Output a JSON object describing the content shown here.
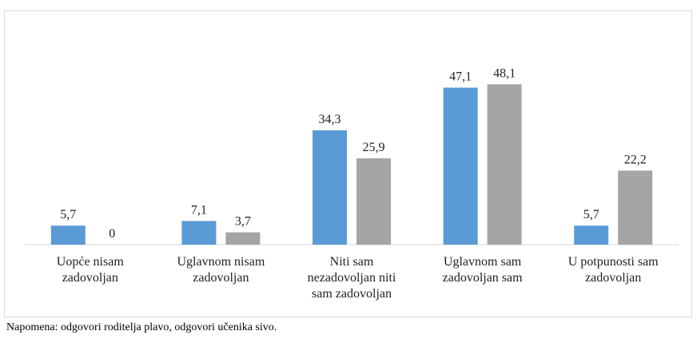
{
  "chart_data": {
    "type": "bar",
    "categories": [
      "Uopće nisam zadovoljan",
      "Uglavnom nisam zadovoljan",
      "Niti sam nezadovoljan niti sam zadovoljan",
      "Uglavnom sam zadovoljan sam",
      "U potpunosti sam zadovoljan"
    ],
    "category_lines": [
      [
        "Uopće nisam",
        "zadovoljan"
      ],
      [
        "Uglavnom nisam",
        "zadovoljan"
      ],
      [
        "Niti sam",
        "nezadovoljan niti",
        "sam zadovoljan"
      ],
      [
        "Uglavnom sam",
        "zadovoljan sam"
      ],
      [
        "U potpunosti sam",
        "zadovoljan"
      ]
    ],
    "series": [
      {
        "values": [
          5.7,
          7.1,
          34.3,
          47.1,
          5.7
        ],
        "labels": [
          "5,7",
          "7,1",
          "34,3",
          "47,1",
          "5,7"
        ],
        "color": "#5b9bd5"
      },
      {
        "values": [
          0,
          3.7,
          25.9,
          48.1,
          22.2
        ],
        "labels": [
          "0",
          "3,7",
          "25,9",
          "48,1",
          "22,2"
        ],
        "color": "#a5a5a5"
      }
    ],
    "ylim": [
      0,
      55
    ],
    "grid": false,
    "legend": "none",
    "data_labels": true
  },
  "footnote": "Napomena: odgovori roditelja plavo, odgovori učenika sivo."
}
